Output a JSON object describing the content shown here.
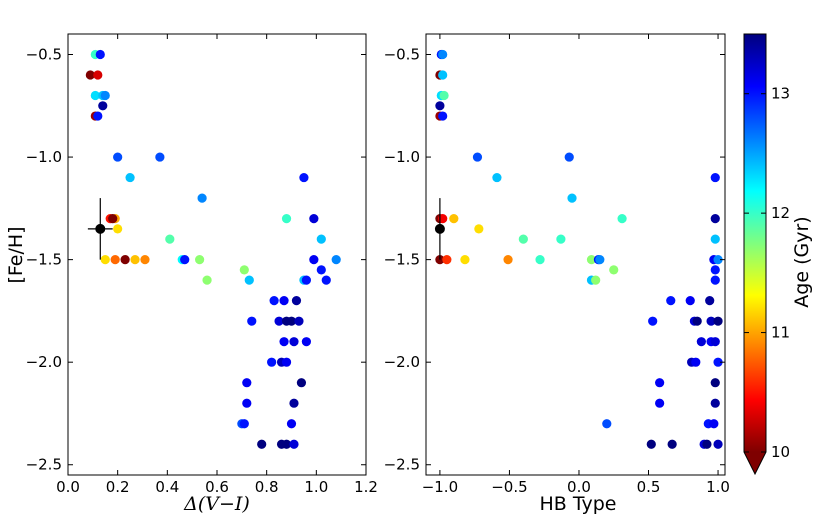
{
  "chart_data": [
    {
      "type": "scatter",
      "panel": "left",
      "xlabel": "Δ(V−I)",
      "ylabel": "[Fe/H]",
      "xlim": [
        0.0,
        1.2
      ],
      "ylim": [
        -2.55,
        -0.4
      ],
      "xticks": [
        0.0,
        0.2,
        0.4,
        0.6,
        0.8,
        1.0,
        1.2
      ],
      "xtick_labels": [
        "0.0",
        "0.2",
        "0.4",
        "0.6",
        "0.8",
        "1.0",
        "1.2"
      ],
      "yticks": [
        -2.5,
        -2.0,
        -1.5,
        -1.0,
        -0.5
      ],
      "ytick_labels": [
        "−2.5",
        "−2.0",
        "−1.5",
        "−1.0",
        "−0.5"
      ],
      "color_by": "age_gyr",
      "points": [
        {
          "x": 0.11,
          "y": -0.5,
          "age": 12.0
        },
        {
          "x": 0.13,
          "y": -0.5,
          "age": 13.0
        },
        {
          "x": 0.09,
          "y": -0.6,
          "age": 10.0
        },
        {
          "x": 0.12,
          "y": -0.6,
          "age": 10.3
        },
        {
          "x": 0.11,
          "y": -0.7,
          "age": 12.3
        },
        {
          "x": 0.14,
          "y": -0.7,
          "age": 12.4
        },
        {
          "x": 0.15,
          "y": -0.7,
          "age": 12.6
        },
        {
          "x": 0.14,
          "y": -0.75,
          "age": 13.4
        },
        {
          "x": 0.11,
          "y": -0.8,
          "age": 10.1
        },
        {
          "x": 0.12,
          "y": -0.8,
          "age": 13.0
        },
        {
          "x": 0.2,
          "y": -1.0,
          "age": 12.8
        },
        {
          "x": 0.37,
          "y": -1.0,
          "age": 12.8
        },
        {
          "x": 0.25,
          "y": -1.1,
          "age": 12.4
        },
        {
          "x": 0.54,
          "y": -1.2,
          "age": 12.6
        },
        {
          "x": 0.17,
          "y": -1.3,
          "age": 10.5
        },
        {
          "x": 0.19,
          "y": -1.3,
          "age": 11.0
        },
        {
          "x": 0.18,
          "y": -1.3,
          "age": 10.0
        },
        {
          "x": 0.2,
          "y": -1.35,
          "age": 11.2
        },
        {
          "x": 0.41,
          "y": -1.4,
          "age": 11.9
        },
        {
          "x": 0.15,
          "y": -1.5,
          "age": 11.2
        },
        {
          "x": 0.19,
          "y": -1.5,
          "age": 10.8
        },
        {
          "x": 0.23,
          "y": -1.5,
          "age": 10.0
        },
        {
          "x": 0.27,
          "y": -1.5,
          "age": 11.1
        },
        {
          "x": 0.31,
          "y": -1.5,
          "age": 10.9
        },
        {
          "x": 0.46,
          "y": -1.5,
          "age": 12.2
        },
        {
          "x": 0.47,
          "y": -1.5,
          "age": 13.0
        },
        {
          "x": 0.53,
          "y": -1.5,
          "age": 11.7
        },
        {
          "x": 0.56,
          "y": -1.6,
          "age": 11.7
        },
        {
          "x": 0.71,
          "y": -1.55,
          "age": 11.7
        },
        {
          "x": 0.73,
          "y": -1.6,
          "age": 12.4
        },
        {
          "x": 0.88,
          "y": -1.3,
          "age": 12.0
        },
        {
          "x": 0.95,
          "y": -1.1,
          "age": 13.0
        },
        {
          "x": 0.99,
          "y": -1.3,
          "age": 13.2
        },
        {
          "x": 1.02,
          "y": -1.4,
          "age": 12.4
        },
        {
          "x": 1.08,
          "y": -1.5,
          "age": 12.6
        },
        {
          "x": 1.02,
          "y": -1.55,
          "age": 13.0
        },
        {
          "x": 1.04,
          "y": -1.6,
          "age": 13.0
        },
        {
          "x": 0.95,
          "y": -1.6,
          "age": 12.4
        },
        {
          "x": 0.96,
          "y": -1.6,
          "age": 13.0
        },
        {
          "x": 0.99,
          "y": -1.5,
          "age": 13.1
        },
        {
          "x": 0.83,
          "y": -1.7,
          "age": 13.0
        },
        {
          "x": 0.87,
          "y": -1.7,
          "age": 13.1
        },
        {
          "x": 0.92,
          "y": -1.7,
          "age": 13.4
        },
        {
          "x": 0.74,
          "y": -1.8,
          "age": 13.0
        },
        {
          "x": 0.85,
          "y": -1.8,
          "age": 13.2
        },
        {
          "x": 0.88,
          "y": -1.8,
          "age": 13.5
        },
        {
          "x": 0.9,
          "y": -1.8,
          "age": 13.5
        },
        {
          "x": 0.93,
          "y": -1.8,
          "age": 13.3
        },
        {
          "x": 0.87,
          "y": -1.9,
          "age": 13.1
        },
        {
          "x": 0.91,
          "y": -1.9,
          "age": 13.2
        },
        {
          "x": 0.96,
          "y": -1.9,
          "age": 13.1
        },
        {
          "x": 0.82,
          "y": -2.0,
          "age": 13.0
        },
        {
          "x": 0.86,
          "y": -2.0,
          "age": 13.3
        },
        {
          "x": 0.88,
          "y": -2.0,
          "age": 13.1
        },
        {
          "x": 0.72,
          "y": -2.1,
          "age": 13.1
        },
        {
          "x": 0.94,
          "y": -2.1,
          "age": 13.5
        },
        {
          "x": 0.91,
          "y": -2.2,
          "age": 13.4
        },
        {
          "x": 0.72,
          "y": -2.2,
          "age": 13.1
        },
        {
          "x": 0.7,
          "y": -2.3,
          "age": 12.8
        },
        {
          "x": 0.71,
          "y": -2.3,
          "age": 13.0
        },
        {
          "x": 0.9,
          "y": -2.3,
          "age": 13.1
        },
        {
          "x": 0.78,
          "y": -2.4,
          "age": 13.5
        },
        {
          "x": 0.86,
          "y": -2.4,
          "age": 13.5
        },
        {
          "x": 0.88,
          "y": -2.4,
          "age": 13.5
        },
        {
          "x": 0.91,
          "y": -2.4,
          "age": 13.2
        }
      ],
      "error_point": {
        "x": 0.13,
        "y": -1.35,
        "xerr": 0.05,
        "yerr": 0.15,
        "color": "#000000"
      }
    },
    {
      "type": "scatter",
      "panel": "right",
      "xlabel": "HB Type",
      "ylabel": "",
      "xlim": [
        -1.1,
        1.05
      ],
      "ylim": [
        -2.55,
        -0.4
      ],
      "xticks": [
        -1.0,
        -0.5,
        0.0,
        0.5,
        1.0
      ],
      "xtick_labels": [
        "−1.0",
        "−0.5",
        "0.0",
        "0.5",
        "1.0"
      ],
      "yticks": [
        -2.5,
        -2.0,
        -1.5,
        -1.0,
        -0.5
      ],
      "ytick_labels": [
        "−2.5",
        "−2.0",
        "−1.5",
        "−1.0",
        "−0.5"
      ],
      "color_by": "age_gyr",
      "points": [
        {
          "x": -0.99,
          "y": -0.5,
          "age": 13.0
        },
        {
          "x": -0.98,
          "y": -0.5,
          "age": 12.6
        },
        {
          "x": -1.0,
          "y": -0.6,
          "age": 10.0
        },
        {
          "x": -0.98,
          "y": -0.6,
          "age": 12.4
        },
        {
          "x": -0.99,
          "y": -0.7,
          "age": 12.3
        },
        {
          "x": -0.97,
          "y": -0.7,
          "age": 11.9
        },
        {
          "x": -1.0,
          "y": -0.75,
          "age": 13.4
        },
        {
          "x": -1.0,
          "y": -0.8,
          "age": 10.1
        },
        {
          "x": -0.98,
          "y": -0.8,
          "age": 13.0
        },
        {
          "x": -0.73,
          "y": -1.0,
          "age": 12.8
        },
        {
          "x": -0.07,
          "y": -1.0,
          "age": 12.8
        },
        {
          "x": -0.59,
          "y": -1.1,
          "age": 12.4
        },
        {
          "x": -0.05,
          "y": -1.2,
          "age": 12.4
        },
        {
          "x": -1.0,
          "y": -1.3,
          "age": 10.0
        },
        {
          "x": -0.98,
          "y": -1.3,
          "age": 10.4
        },
        {
          "x": -0.9,
          "y": -1.3,
          "age": 11.1
        },
        {
          "x": -0.72,
          "y": -1.35,
          "age": 11.2
        },
        {
          "x": -0.4,
          "y": -1.4,
          "age": 11.9
        },
        {
          "x": -0.13,
          "y": -1.4,
          "age": 12.0
        },
        {
          "x": -1.0,
          "y": -1.5,
          "age": 10.0
        },
        {
          "x": -0.95,
          "y": -1.5,
          "age": 10.6
        },
        {
          "x": -0.82,
          "y": -1.5,
          "age": 11.2
        },
        {
          "x": -0.51,
          "y": -1.5,
          "age": 10.9
        },
        {
          "x": -0.28,
          "y": -1.5,
          "age": 12.0
        },
        {
          "x": 0.09,
          "y": -1.5,
          "age": 11.7
        },
        {
          "x": 0.14,
          "y": -1.5,
          "age": 13.0
        },
        {
          "x": 0.15,
          "y": -1.5,
          "age": 12.6
        },
        {
          "x": 0.09,
          "y": -1.6,
          "age": 12.4
        },
        {
          "x": 0.12,
          "y": -1.6,
          "age": 11.7
        },
        {
          "x": 0.25,
          "y": -1.55,
          "age": 11.7
        },
        {
          "x": 0.31,
          "y": -1.3,
          "age": 12.0
        },
        {
          "x": 0.98,
          "y": -1.1,
          "age": 13.0
        },
        {
          "x": 0.98,
          "y": -1.3,
          "age": 13.4
        },
        {
          "x": 0.98,
          "y": -1.4,
          "age": 12.4
        },
        {
          "x": 0.97,
          "y": -1.5,
          "age": 13.1
        },
        {
          "x": 1.0,
          "y": -1.5,
          "age": 12.6
        },
        {
          "x": 0.98,
          "y": -1.55,
          "age": 13.0
        },
        {
          "x": 0.98,
          "y": -1.6,
          "age": 13.0
        },
        {
          "x": 0.66,
          "y": -1.7,
          "age": 13.0
        },
        {
          "x": 0.8,
          "y": -1.7,
          "age": 13.1
        },
        {
          "x": 0.94,
          "y": -1.7,
          "age": 13.4
        },
        {
          "x": 0.53,
          "y": -1.8,
          "age": 13.0
        },
        {
          "x": 0.83,
          "y": -1.8,
          "age": 13.2
        },
        {
          "x": 0.85,
          "y": -1.8,
          "age": 13.5
        },
        {
          "x": 0.95,
          "y": -1.8,
          "age": 13.3
        },
        {
          "x": 1.0,
          "y": -1.8,
          "age": 13.5
        },
        {
          "x": 0.88,
          "y": -1.9,
          "age": 13.2
        },
        {
          "x": 0.95,
          "y": -1.9,
          "age": 13.1
        },
        {
          "x": 0.98,
          "y": -1.9,
          "age": 13.2
        },
        {
          "x": 0.81,
          "y": -2.0,
          "age": 13.3
        },
        {
          "x": 0.84,
          "y": -2.0,
          "age": 13.1
        },
        {
          "x": 1.0,
          "y": -2.0,
          "age": 13.0
        },
        {
          "x": 0.58,
          "y": -2.1,
          "age": 13.1
        },
        {
          "x": 0.98,
          "y": -2.1,
          "age": 13.5
        },
        {
          "x": 0.58,
          "y": -2.2,
          "age": 13.1
        },
        {
          "x": 0.98,
          "y": -2.2,
          "age": 13.4
        },
        {
          "x": 0.2,
          "y": -2.3,
          "age": 12.8
        },
        {
          "x": 0.93,
          "y": -2.3,
          "age": 13.0
        },
        {
          "x": 0.97,
          "y": -2.3,
          "age": 13.1
        },
        {
          "x": 0.52,
          "y": -2.4,
          "age": 13.5
        },
        {
          "x": 0.67,
          "y": -2.4,
          "age": 13.5
        },
        {
          "x": 0.9,
          "y": -2.4,
          "age": 13.2
        },
        {
          "x": 0.92,
          "y": -2.4,
          "age": 13.5
        },
        {
          "x": 1.0,
          "y": -2.4,
          "age": 13.3
        }
      ],
      "error_point": {
        "x": -1.0,
        "y": -1.35,
        "xerr": 0.0,
        "yerr": 0.15,
        "color": "#000000"
      }
    }
  ],
  "colorbar": {
    "label": "Age (Gyr)",
    "min": 10.0,
    "max": 13.5,
    "ticks": [
      10,
      11,
      12,
      13
    ],
    "tick_labels": [
      "10",
      "11",
      "12",
      "13"
    ],
    "colormap": "jet_reversed",
    "extend": "min"
  },
  "colors": {
    "jet": [
      "#00007f",
      "#0000ff",
      "#007fff",
      "#00ffff",
      "#7fff7f",
      "#ffff00",
      "#ff7f00",
      "#ff0000",
      "#7f0000"
    ]
  }
}
